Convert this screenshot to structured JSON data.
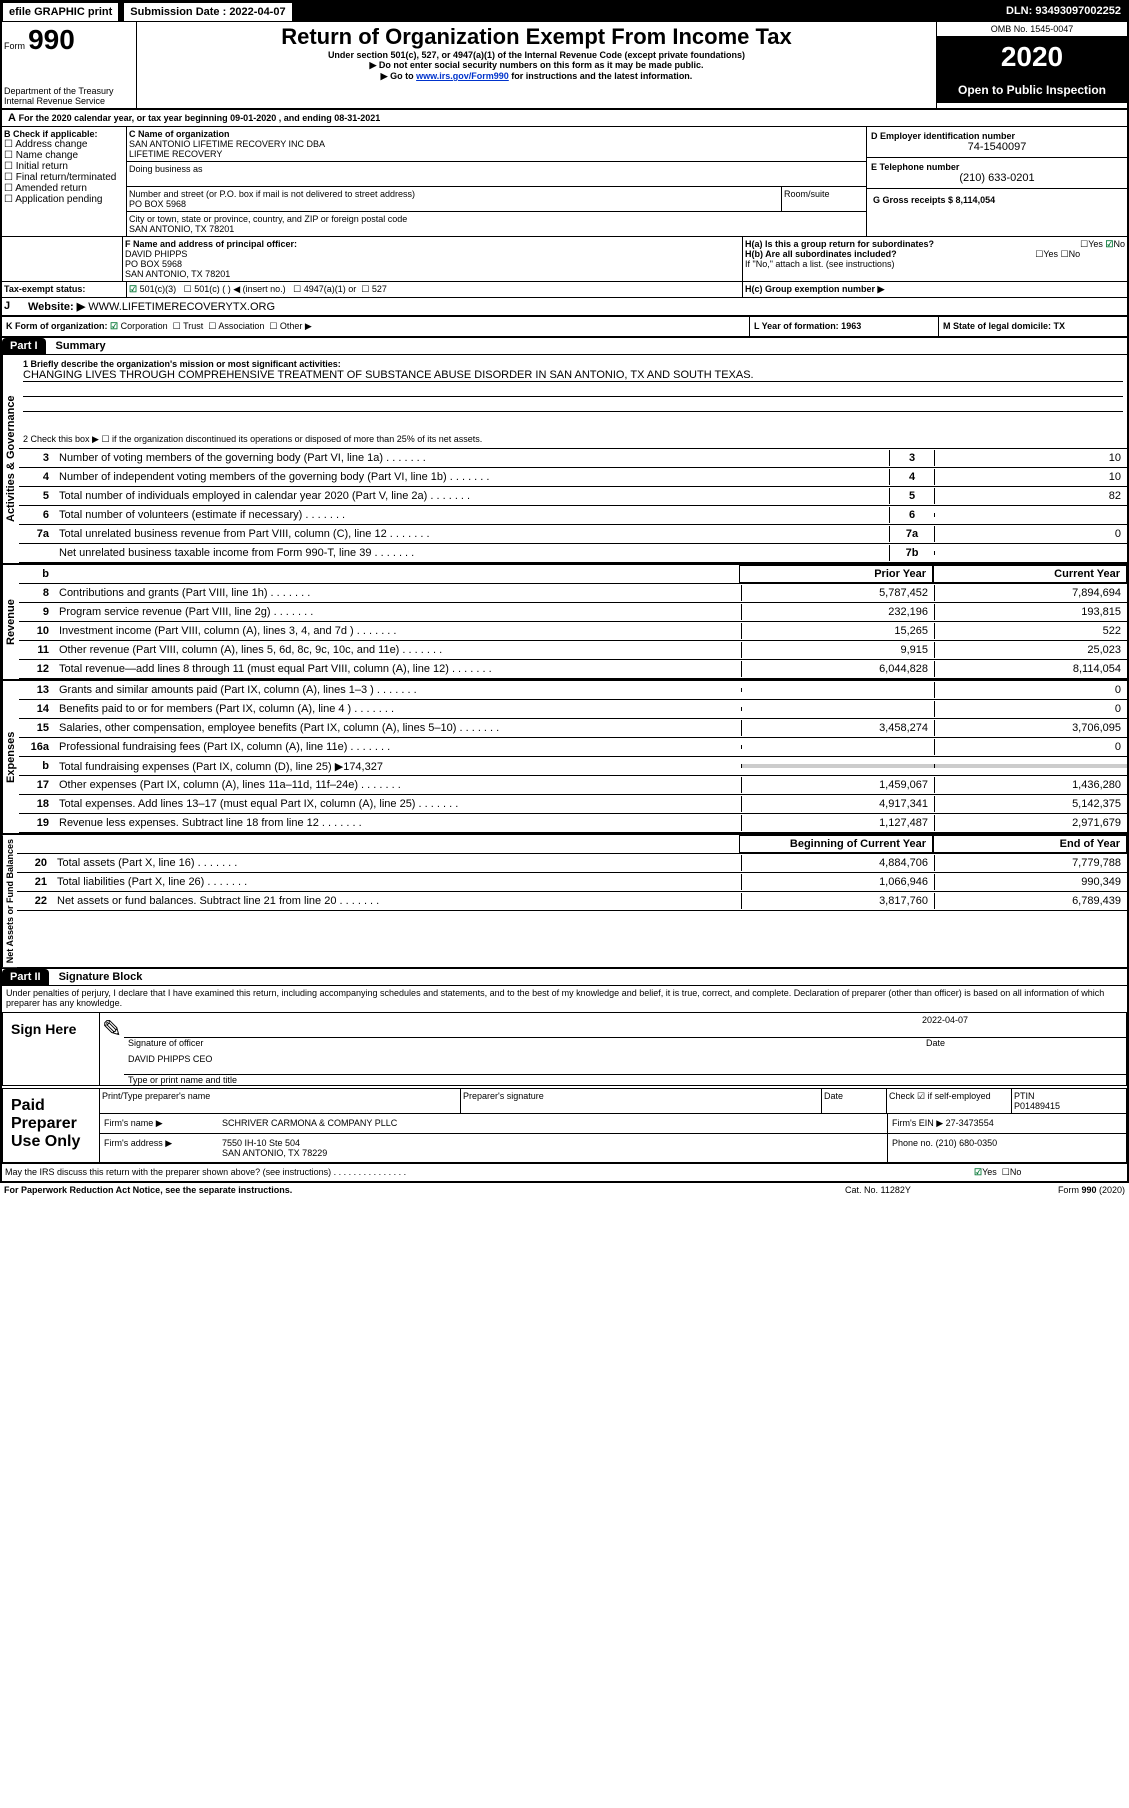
{
  "header": {
    "efile_label": "efile GRAPHIC print",
    "submission_label": "Submission Date : 2022-04-07",
    "dln_label": "DLN: 93493097002252",
    "form_label": "Form",
    "form_number": "990",
    "dept": "Department of the Treasury\nInternal Revenue Service",
    "title": "Return of Organization Exempt From Income Tax",
    "subtitle1": "Under section 501(c), 527, or 4947(a)(1) of the Internal Revenue Code (except private foundations)",
    "subtitle2": "▶ Do not enter social security numbers on this form as it may be made public.",
    "subtitle3_pre": "▶ Go to ",
    "subtitle3_link": "www.irs.gov/Form990",
    "subtitle3_post": " for instructions and the latest information.",
    "omb": "OMB No. 1545-0047",
    "year": "2020",
    "open": "Open to Public Inspection"
  },
  "a_line": "For the 2020 calendar year, or tax year beginning 09-01-2020   , and ending 08-31-2021",
  "section_b": {
    "label": "B Check if applicable:",
    "opts": [
      "Address change",
      "Name change",
      "Initial return",
      "Final return/terminated",
      "Amended return",
      "Application pending"
    ]
  },
  "section_c": {
    "name_label": "C Name of organization",
    "name": "SAN ANTONIO LIFETIME RECOVERY INC DBA\nLIFETIME RECOVERY",
    "dba_label": "Doing business as",
    "street_label": "Number and street (or P.O. box if mail is not delivered to street address)",
    "street": "PO BOX 5968",
    "room_label": "Room/suite",
    "city_label": "City or town, state or province, country, and ZIP or foreign postal code",
    "city": "SAN ANTONIO, TX  78201"
  },
  "section_d": {
    "label": "D Employer identification number",
    "val": "74-1540097"
  },
  "section_e": {
    "label": "E Telephone number",
    "val": "(210) 633-0201"
  },
  "section_g": {
    "label": "G Gross receipts $ 8,114,054"
  },
  "section_f": {
    "label": "F  Name and address of principal officer:",
    "name": "DAVID PHIPPS",
    "street": "PO BOX 5968",
    "city": "SAN ANTONIO, TX  78201"
  },
  "section_h": {
    "a": "H(a)  Is this a group return for subordinates?",
    "a_yes": "Yes",
    "a_no": "No",
    "b": "H(b)  Are all subordinates included?",
    "b_yes": "Yes",
    "b_no": "No",
    "b_note": "If \"No,\" attach a list. (see instructions)",
    "c": "H(c)  Group exemption number ▶"
  },
  "tax_exempt": {
    "label": "Tax-exempt status:",
    "opt1": "501(c)(3)",
    "opt2": "501(c) (  ) ◀ (insert no.)",
    "opt3": "4947(a)(1) or",
    "opt4": "527"
  },
  "section_i": {
    "label": "I",
    "txt": "Website: ▶",
    "val": "WWW.LIFETIMERECOVERYTX.ORG"
  },
  "section_j": {
    "label": "J"
  },
  "section_k": {
    "label": "K Form of organization:",
    "opts": [
      "Corporation",
      "Trust",
      "Association",
      "Other ▶"
    ]
  },
  "section_l": {
    "label": "L Year of formation: 1963"
  },
  "section_m": {
    "label": "M State of legal domicile: TX"
  },
  "part1": {
    "hdr": "Part I",
    "title": "Summary",
    "line1_label": "1  Briefly describe the organization's mission or most significant activities:",
    "line1_val": "CHANGING LIVES THROUGH COMPREHENSIVE TREATMENT OF SUBSTANCE ABUSE DISORDER IN SAN ANTONIO, TX AND SOUTH TEXAS.",
    "line2": "2    Check this box ▶ ☐  if the organization discontinued its operations or disposed of more than 25% of its net assets.",
    "lines_gov": [
      {
        "n": "3",
        "t": "Number of voting members of the governing body (Part VI, line 1a)",
        "box": "3",
        "v": "10"
      },
      {
        "n": "4",
        "t": "Number of independent voting members of the governing body (Part VI, line 1b)",
        "box": "4",
        "v": "10"
      },
      {
        "n": "5",
        "t": "Total number of individuals employed in calendar year 2020 (Part V, line 2a)",
        "box": "5",
        "v": "82"
      },
      {
        "n": "6",
        "t": "Total number of volunteers (estimate if necessary)",
        "box": "6",
        "v": ""
      },
      {
        "n": "7a",
        "t": "Total unrelated business revenue from Part VIII, column (C), line 12",
        "box": "7a",
        "v": "0"
      },
      {
        "n": "",
        "t": "Net unrelated business taxable income from Form 990-T, line 39",
        "box": "7b",
        "v": ""
      }
    ],
    "col_prior": "Prior Year",
    "col_current": "Current Year",
    "lines_rev": [
      {
        "n": "8",
        "t": "Contributions and grants (Part VIII, line 1h)",
        "p": "5,787,452",
        "c": "7,894,694"
      },
      {
        "n": "9",
        "t": "Program service revenue (Part VIII, line 2g)",
        "p": "232,196",
        "c": "193,815"
      },
      {
        "n": "10",
        "t": "Investment income (Part VIII, column (A), lines 3, 4, and 7d )",
        "p": "15,265",
        "c": "522"
      },
      {
        "n": "11",
        "t": "Other revenue (Part VIII, column (A), lines 5, 6d, 8c, 9c, 10c, and 11e)",
        "p": "9,915",
        "c": "25,023"
      },
      {
        "n": "12",
        "t": "Total revenue—add lines 8 through 11 (must equal Part VIII, column (A), line 12)",
        "p": "6,044,828",
        "c": "8,114,054"
      }
    ],
    "lines_exp": [
      {
        "n": "13",
        "t": "Grants and similar amounts paid (Part IX, column (A), lines 1–3 )",
        "p": "",
        "c": "0"
      },
      {
        "n": "14",
        "t": "Benefits paid to or for members (Part IX, column (A), line 4 )",
        "p": "",
        "c": "0"
      },
      {
        "n": "15",
        "t": "Salaries, other compensation, employee benefits (Part IX, column (A), lines 5–10)",
        "p": "3,458,274",
        "c": "3,706,095"
      },
      {
        "n": "16a",
        "t": "Professional fundraising fees (Part IX, column (A), line 11e)",
        "p": "",
        "c": "0"
      },
      {
        "n": "b",
        "t": "Total fundraising expenses (Part IX, column (D), line 25) ▶174,327",
        "p": "—",
        "c": "—"
      },
      {
        "n": "17",
        "t": "Other expenses (Part IX, column (A), lines 11a–11d, 11f–24e)",
        "p": "1,459,067",
        "c": "1,436,280"
      },
      {
        "n": "18",
        "t": "Total expenses. Add lines 13–17 (must equal Part IX, column (A), line 25)",
        "p": "4,917,341",
        "c": "5,142,375"
      },
      {
        "n": "19",
        "t": "Revenue less expenses. Subtract line 18 from line 12",
        "p": "1,127,487",
        "c": "2,971,679"
      }
    ],
    "col_begin": "Beginning of Current Year",
    "col_end": "End of Year",
    "lines_net": [
      {
        "n": "20",
        "t": "Total assets (Part X, line 16)",
        "p": "4,884,706",
        "c": "7,779,788"
      },
      {
        "n": "21",
        "t": "Total liabilities (Part X, line 26)",
        "p": "1,066,946",
        "c": "990,349"
      },
      {
        "n": "22",
        "t": "Net assets or fund balances. Subtract line 21 from line 20",
        "p": "3,817,760",
        "c": "6,789,439"
      }
    ],
    "side_gov": "Activities & Governance",
    "side_rev": "Revenue",
    "side_exp": "Expenses",
    "side_net": "Net Assets or Fund Balances"
  },
  "part2": {
    "hdr": "Part II",
    "title": "Signature Block",
    "perjury": "Under penalties of perjury, I declare that I have examined this return, including accompanying schedules and statements, and to the best of my knowledge and belief, it is true, correct, and complete. Declaration of preparer (other than officer) is based on all information of which preparer has any knowledge.",
    "sign_here": "Sign Here",
    "sig_officer": "Signature of officer",
    "date_label": "Date",
    "date_val": "2022-04-07",
    "officer_name": "DAVID PHIPPS CEO",
    "type_name": "Type or print name and title",
    "paid": "Paid Preparer Use Only",
    "prep_name_label": "Print/Type preparer's name",
    "prep_sig_label": "Preparer's signature",
    "prep_date_label": "Date",
    "self_emp": "Check ☑ if self-employed",
    "ptin_label": "PTIN",
    "ptin": "P01489415",
    "firm_name_label": "Firm's name    ▶",
    "firm_name": "SCHRIVER CARMONA & COMPANY PLLC",
    "firm_ein_label": "Firm's EIN ▶",
    "firm_ein": "27-3473554",
    "firm_addr_label": "Firm's address ▶",
    "firm_addr": "7550 IH-10 Ste 504\nSAN ANTONIO, TX  78229",
    "phone_label": "Phone no.",
    "phone": "(210) 680-0350",
    "discuss": "May the IRS discuss this return with the preparer shown above? (see instructions)",
    "discuss_yes": "Yes",
    "discuss_no": "No"
  },
  "footer": {
    "paperwork": "For Paperwork Reduction Act Notice, see the separate instructions.",
    "cat": "Cat. No. 11282Y",
    "form": "Form 990 (2020)"
  }
}
